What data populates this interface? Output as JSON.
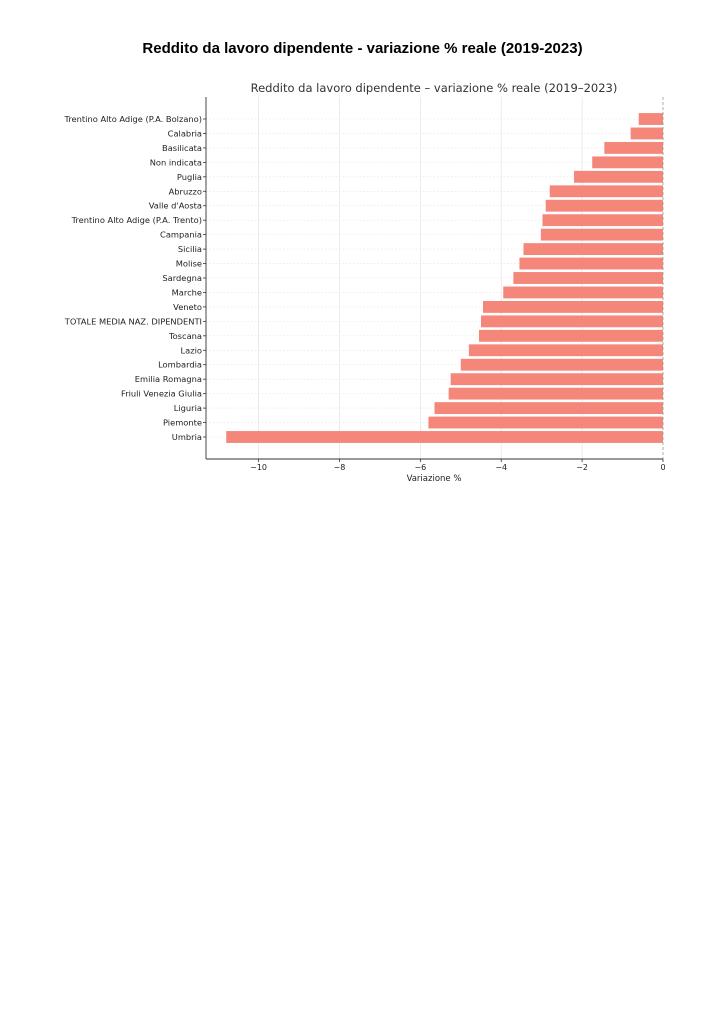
{
  "document": {
    "title": "Reddito da lavoro dipendente - variazione % reale (2019-2023)"
  },
  "chart_data": {
    "type": "bar",
    "orientation": "horizontal",
    "title": "Reddito da lavoro dipendente – variazione % reale (2019–2023)",
    "xlabel": "Variazione %",
    "ylabel": "",
    "xlim": [
      -11.3,
      0
    ],
    "xticks": [
      -10,
      -8,
      -6,
      -4,
      -2,
      0
    ],
    "xtick_labels": [
      "−10",
      "−8",
      "−6",
      "−4",
      "−2",
      "0"
    ],
    "grid": true,
    "bar_color": "#f4867a",
    "zero_line": "dashed",
    "categories": [
      "Trentino Alto Adige (P.A. Bolzano)",
      "Calabria",
      "Basilicata",
      "Non indicata",
      "Puglia",
      "Abruzzo",
      "Valle d'Aosta",
      "Trentino Alto Adige (P.A. Trento)",
      "Campania",
      "Sicilia",
      "Molise",
      "Sardegna",
      "Marche",
      "Veneto",
      "TOTALE MEDIA NAZ. DIPENDENTI",
      "Toscana",
      "Lazio",
      "Lombardia",
      "Emilia Romagna",
      "Friuli Venezia Giulia",
      "Liguria",
      "Piemonte",
      "Umbria"
    ],
    "values": [
      -0.6,
      -0.8,
      -1.45,
      -1.75,
      -2.2,
      -2.8,
      -2.9,
      -2.98,
      -3.02,
      -3.45,
      -3.55,
      -3.7,
      -3.95,
      -4.45,
      -4.5,
      -4.55,
      -4.8,
      -5.0,
      -5.25,
      -5.3,
      -5.65,
      -5.8,
      -10.8
    ]
  }
}
